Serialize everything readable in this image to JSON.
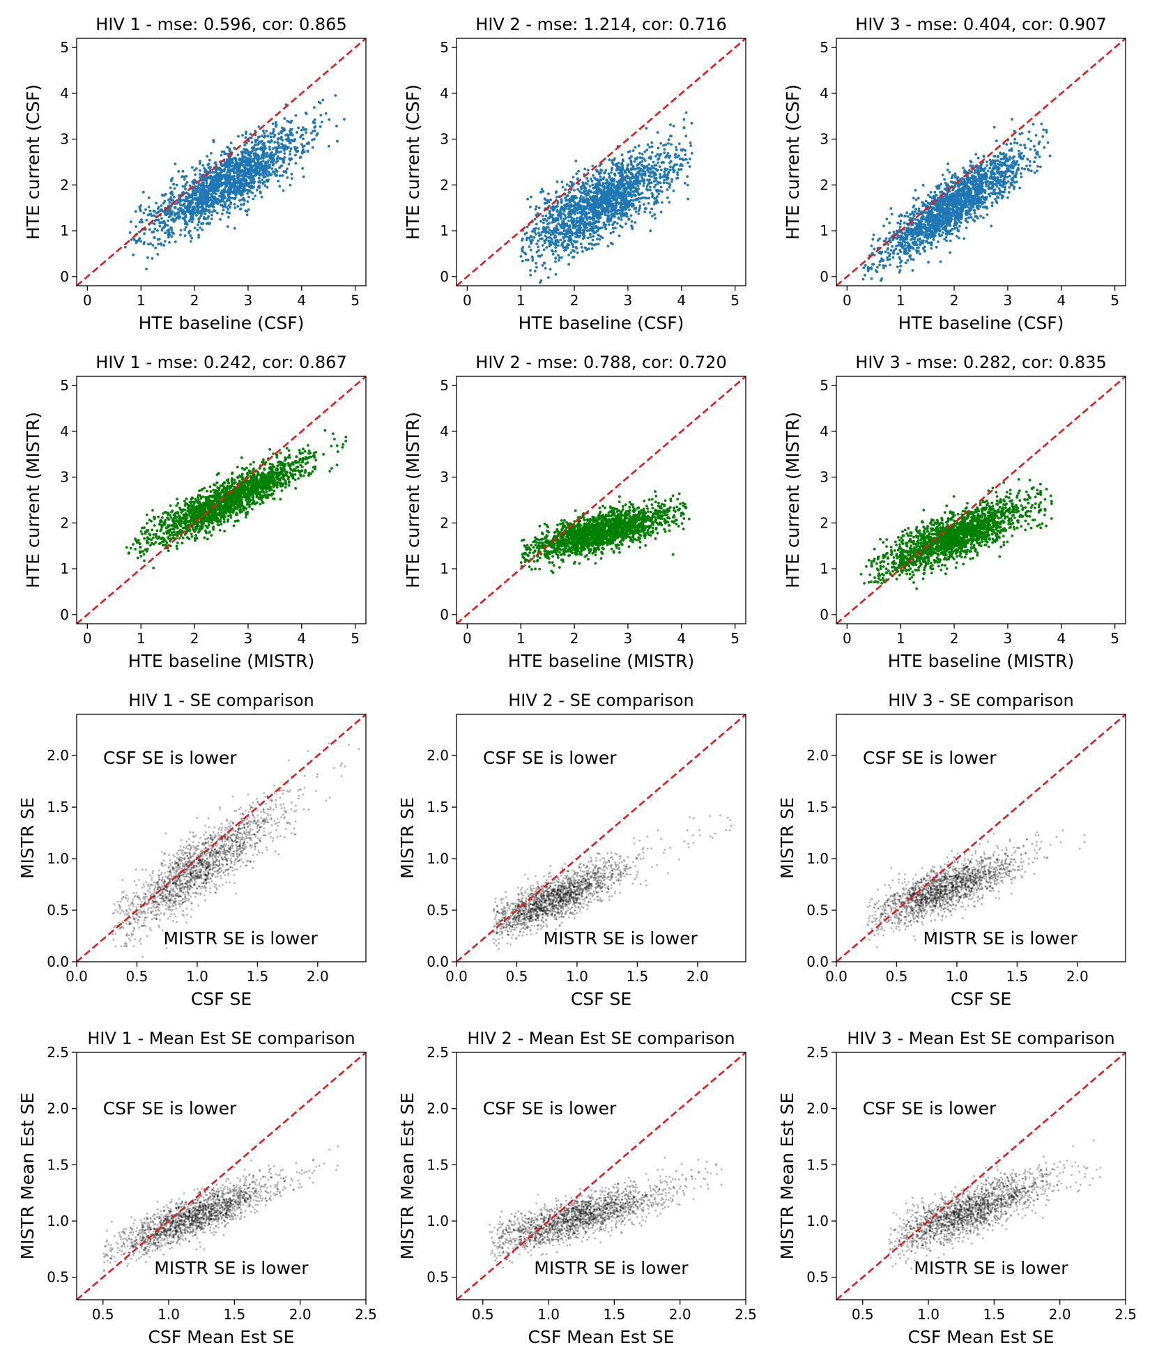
{
  "figure": {
    "name": "HTE and SE comparison grid",
    "colors": {
      "csf": "#1f77b4",
      "mistr": "#008000",
      "se": "#000000",
      "identity_line": "#e41a1c"
    }
  },
  "chart_data": [
    {
      "type": "scatter",
      "title": "HIV 1 - mse: 0.596, cor: 0.865",
      "xlabel": "HTE baseline (CSF)",
      "ylabel": "HTE current (CSF)",
      "xlim": [
        -0.2,
        5.2
      ],
      "ylim": [
        -0.2,
        5.2
      ],
      "xticks": [
        0,
        1,
        2,
        3,
        4,
        5
      ],
      "yticks": [
        0,
        1,
        2,
        3,
        4,
        5
      ],
      "point_color": "#1f77b4",
      "point_opacity": 1.0,
      "identity_line": true,
      "series": {
        "x_range": [
          0.7,
          5.0
        ],
        "x_center": 2.6,
        "x_spread": 0.75,
        "slope": 0.66,
        "intercept": 0.35,
        "noise": 0.33,
        "count": 1800
      },
      "annotations": []
    },
    {
      "type": "scatter",
      "title": "HIV 2 - mse: 1.214, cor: 0.716",
      "xlabel": "HTE baseline (CSF)",
      "ylabel": "HTE current (CSF)",
      "xlim": [
        -0.2,
        5.2
      ],
      "ylim": [
        -0.2,
        5.2
      ],
      "xticks": [
        0,
        1,
        2,
        3,
        4,
        5
      ],
      "yticks": [
        0,
        1,
        2,
        3,
        4,
        5
      ],
      "point_color": "#1f77b4",
      "point_opacity": 1.0,
      "identity_line": true,
      "series": {
        "x_range": [
          1.0,
          4.2
        ],
        "x_center": 2.5,
        "x_spread": 0.7,
        "slope": 0.6,
        "intercept": 0.1,
        "noise": 0.38,
        "count": 1800
      },
      "annotations": []
    },
    {
      "type": "scatter",
      "title": "HIV 3 - mse: 0.404, cor: 0.907",
      "xlabel": "HTE baseline (CSF)",
      "ylabel": "HTE current (CSF)",
      "xlim": [
        -0.2,
        5.2
      ],
      "ylim": [
        -0.2,
        5.2
      ],
      "xticks": [
        0,
        1,
        2,
        3,
        4,
        5
      ],
      "yticks": [
        0,
        1,
        2,
        3,
        4,
        5
      ],
      "point_color": "#1f77b4",
      "point_opacity": 1.0,
      "identity_line": true,
      "series": {
        "x_range": [
          0.3,
          3.9
        ],
        "x_center": 2.0,
        "x_spread": 0.7,
        "slope": 0.78,
        "intercept": 0.0,
        "noise": 0.3,
        "count": 1800
      },
      "annotations": []
    },
    {
      "type": "scatter",
      "title": "HIV 1 - mse: 0.242, cor: 0.867",
      "xlabel": "HTE baseline (MISTR)",
      "ylabel": "HTE current (MISTR)",
      "xlim": [
        -0.2,
        5.2
      ],
      "ylim": [
        -0.2,
        5.2
      ],
      "xticks": [
        0,
        1,
        2,
        3,
        4,
        5
      ],
      "yticks": [
        0,
        1,
        2,
        3,
        4,
        5
      ],
      "point_color": "#008000",
      "point_opacity": 1.0,
      "identity_line": true,
      "series": {
        "x_range": [
          0.7,
          5.0
        ],
        "x_center": 2.6,
        "x_spread": 0.75,
        "slope": 0.57,
        "intercept": 1.0,
        "noise": 0.22,
        "count": 1800
      },
      "annotations": []
    },
    {
      "type": "scatter",
      "title": "HIV 2 - mse: 0.788, cor: 0.720",
      "xlabel": "HTE baseline (MISTR)",
      "ylabel": "HTE current (MISTR)",
      "xlim": [
        -0.2,
        5.2
      ],
      "ylim": [
        -0.2,
        5.2
      ],
      "xticks": [
        0,
        1,
        2,
        3,
        4,
        5
      ],
      "yticks": [
        0,
        1,
        2,
        3,
        4,
        5
      ],
      "point_color": "#008000",
      "point_opacity": 1.0,
      "identity_line": true,
      "series": {
        "x_range": [
          1.0,
          4.2
        ],
        "x_center": 2.5,
        "x_spread": 0.7,
        "slope": 0.3,
        "intercept": 1.05,
        "noise": 0.2,
        "count": 1800
      },
      "annotations": []
    },
    {
      "type": "scatter",
      "title": "HIV 3 - mse: 0.282, cor: 0.835",
      "xlabel": "HTE baseline (MISTR)",
      "ylabel": "HTE current (MISTR)",
      "xlim": [
        -0.2,
        5.2
      ],
      "ylim": [
        -0.2,
        5.2
      ],
      "xticks": [
        0,
        1,
        2,
        3,
        4,
        5
      ],
      "yticks": [
        0,
        1,
        2,
        3,
        4,
        5
      ],
      "point_color": "#008000",
      "point_opacity": 1.0,
      "identity_line": true,
      "series": {
        "x_range": [
          0.2,
          3.9
        ],
        "x_center": 2.0,
        "x_spread": 0.7,
        "slope": 0.45,
        "intercept": 0.8,
        "noise": 0.25,
        "count": 1800
      },
      "annotations": []
    },
    {
      "type": "scatter",
      "title": "HIV 1 - SE comparison",
      "xlabel": "CSF SE",
      "ylabel": "MISTR SE",
      "xlim": [
        0.0,
        2.4
      ],
      "ylim": [
        0.0,
        2.4
      ],
      "xticks": [
        0.0,
        0.5,
        1.0,
        1.5,
        2.0
      ],
      "yticks": [
        0.0,
        0.5,
        1.0,
        1.5,
        2.0
      ],
      "point_color": "#000000",
      "point_opacity": 0.3,
      "identity_line": true,
      "series": {
        "x_range": [
          0.3,
          2.35
        ],
        "x_center": 1.0,
        "x_spread": 0.35,
        "slope": 0.8,
        "intercept": 0.1,
        "noise": 0.15,
        "count": 1800
      },
      "annotations": [
        {
          "text": "CSF SE is lower",
          "x": 0.22,
          "y": 1.92
        },
        {
          "text": "MISTR SE is lower",
          "x": 0.72,
          "y": 0.17
        }
      ]
    },
    {
      "type": "scatter",
      "title": "HIV 2 - SE comparison",
      "xlabel": "CSF SE",
      "ylabel": "MISTR SE",
      "xlim": [
        0.0,
        2.4
      ],
      "ylim": [
        0.0,
        2.4
      ],
      "xticks": [
        0.0,
        0.5,
        1.0,
        1.5,
        2.0
      ],
      "yticks": [
        0.0,
        0.5,
        1.0,
        1.5,
        2.0
      ],
      "point_color": "#000000",
      "point_opacity": 0.3,
      "identity_line": true,
      "series": {
        "x_range": [
          0.3,
          2.3
        ],
        "x_center": 0.8,
        "x_spread": 0.3,
        "slope": 0.5,
        "intercept": 0.2,
        "noise": 0.1,
        "count": 1800
      },
      "annotations": [
        {
          "text": "CSF SE is lower",
          "x": 0.22,
          "y": 1.92
        },
        {
          "text": "MISTR SE is lower",
          "x": 0.72,
          "y": 0.17
        }
      ]
    },
    {
      "type": "scatter",
      "title": "HIV 3 - SE comparison",
      "xlabel": "CSF SE",
      "ylabel": "MISTR SE",
      "xlim": [
        0.0,
        2.4
      ],
      "ylim": [
        0.0,
        2.4
      ],
      "xticks": [
        0.0,
        0.5,
        1.0,
        1.5,
        2.0
      ],
      "yticks": [
        0.0,
        0.5,
        1.0,
        1.5,
        2.0
      ],
      "point_color": "#000000",
      "point_opacity": 0.3,
      "identity_line": true,
      "series": {
        "x_range": [
          0.25,
          2.1
        ],
        "x_center": 0.9,
        "x_spread": 0.3,
        "slope": 0.45,
        "intercept": 0.3,
        "noise": 0.11,
        "count": 1800
      },
      "annotations": [
        {
          "text": "CSF SE is lower",
          "x": 0.22,
          "y": 1.92
        },
        {
          "text": "MISTR SE is lower",
          "x": 0.72,
          "y": 0.17
        }
      ]
    },
    {
      "type": "scatter",
      "title": "HIV 1 - Mean Est SE comparison",
      "xlabel": "CSF Mean Est SE",
      "ylabel": "MISTR Mean Est SE",
      "xlim": [
        0.3,
        2.5
      ],
      "ylim": [
        0.3,
        2.5
      ],
      "xticks": [
        0.5,
        1.0,
        1.5,
        2.0,
        2.5
      ],
      "yticks": [
        0.5,
        1.0,
        1.5,
        2.0,
        2.5
      ],
      "point_color": "#000000",
      "point_opacity": 0.3,
      "identity_line": true,
      "series": {
        "x_range": [
          0.5,
          2.3
        ],
        "x_center": 1.2,
        "x_spread": 0.3,
        "slope": 0.45,
        "intercept": 0.5,
        "noise": 0.09,
        "count": 1800
      },
      "annotations": [
        {
          "text": "CSF SE is lower",
          "x": 0.5,
          "y": 1.95
        },
        {
          "text": "MISTR SE is lower",
          "x": 0.89,
          "y": 0.53
        }
      ]
    },
    {
      "type": "scatter",
      "title": "HIV 2 - Mean Est SE comparison",
      "xlabel": "CSF Mean Est SE",
      "ylabel": "MISTR Mean Est SE",
      "xlim": [
        0.3,
        2.5
      ],
      "ylim": [
        0.3,
        2.5
      ],
      "xticks": [
        0.5,
        1.0,
        1.5,
        2.0,
        2.5
      ],
      "yticks": [
        0.5,
        1.0,
        1.5,
        2.0,
        2.5
      ],
      "point_color": "#000000",
      "point_opacity": 0.3,
      "identity_line": true,
      "series": {
        "x_range": [
          0.55,
          2.4
        ],
        "x_center": 1.2,
        "x_spread": 0.35,
        "slope": 0.35,
        "intercept": 0.6,
        "noise": 0.09,
        "count": 1800
      },
      "annotations": [
        {
          "text": "CSF SE is lower",
          "x": 0.5,
          "y": 1.95
        },
        {
          "text": "MISTR SE is lower",
          "x": 0.89,
          "y": 0.53
        }
      ]
    },
    {
      "type": "scatter",
      "title": "HIV 3 - Mean Est SE comparison",
      "xlabel": "CSF Mean Est SE",
      "ylabel": "MISTR Mean Est SE",
      "xlim": [
        0.3,
        2.5
      ],
      "ylim": [
        0.3,
        2.5
      ],
      "xticks": [
        0.5,
        1.0,
        1.5,
        2.0,
        2.5
      ],
      "yticks": [
        0.5,
        1.0,
        1.5,
        2.0,
        2.5
      ],
      "point_color": "#000000",
      "point_opacity": 0.3,
      "identity_line": true,
      "series": {
        "x_range": [
          0.7,
          2.35
        ],
        "x_center": 1.3,
        "x_spread": 0.3,
        "slope": 0.45,
        "intercept": 0.5,
        "noise": 0.1,
        "count": 1800
      },
      "annotations": [
        {
          "text": "CSF SE is lower",
          "x": 0.5,
          "y": 1.95
        },
        {
          "text": "MISTR SE is lower",
          "x": 0.89,
          "y": 0.53
        }
      ]
    }
  ]
}
